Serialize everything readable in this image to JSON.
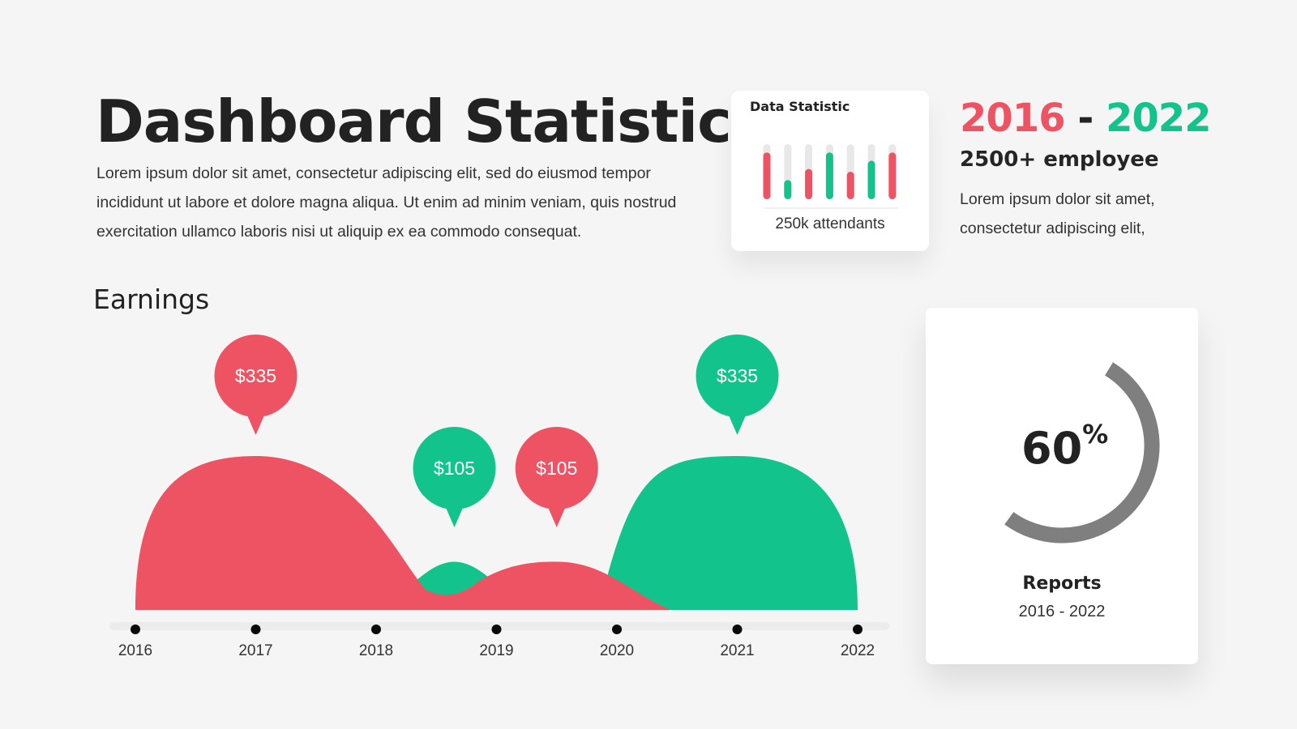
{
  "header": {
    "title": "Dashboard Statistic",
    "intro": "Lorem ipsum dolor sit amet, consectetur adipiscing elit, sed do eiusmod tempor incididunt ut labore et dolore magna aliqua. Ut enim ad minim veniam, quis nostrud exercitation ullamco laboris nisi ut aliquip ex ea commodo consequat."
  },
  "colors": {
    "red": "#ee5363",
    "green": "#12c48b",
    "gray": "#7f7f7f",
    "track": "#e8e8e8"
  },
  "stat_card": {
    "title": "Data Statistic",
    "caption": "250k attendants"
  },
  "summary": {
    "range_from": "2016",
    "range_sep": "-",
    "range_to": "2022",
    "employees": "2500+ employee",
    "text": "Lorem ipsum dolor sit amet, consectetur adipiscing elit,"
  },
  "earnings": {
    "title": "Earnings"
  },
  "report_card": {
    "value": "60",
    "unit": "%",
    "label": "Reports",
    "range": "2016 - 2022"
  },
  "chart_data": [
    {
      "type": "bar",
      "series": [
        {
          "values": [
            85,
            35,
            55,
            85,
            50,
            70,
            85
          ],
          "colors": [
            "red",
            "green",
            "red",
            "green",
            "red",
            "green",
            "red"
          ]
        }
      ],
      "ylim": [
        0,
        100
      ],
      "max_value": 100
    },
    {
      "type": "area",
      "title": "Earnings",
      "x": [
        "2016",
        "2017",
        "2018",
        "2019",
        "2020",
        "2021",
        "2022"
      ],
      "peaks": [
        {
          "x": 2017,
          "value": 335,
          "label": "$335",
          "color": "red"
        },
        {
          "x": 2018.65,
          "value": 105,
          "label": "$105",
          "color": "green"
        },
        {
          "x": 2019.5,
          "value": 105,
          "label": "$105",
          "color": "red"
        },
        {
          "x": 2021,
          "value": 335,
          "label": "$335",
          "color": "green"
        }
      ]
    },
    {
      "type": "pie",
      "label": "Reports",
      "values": [
        60
      ],
      "unit": "%"
    }
  ]
}
